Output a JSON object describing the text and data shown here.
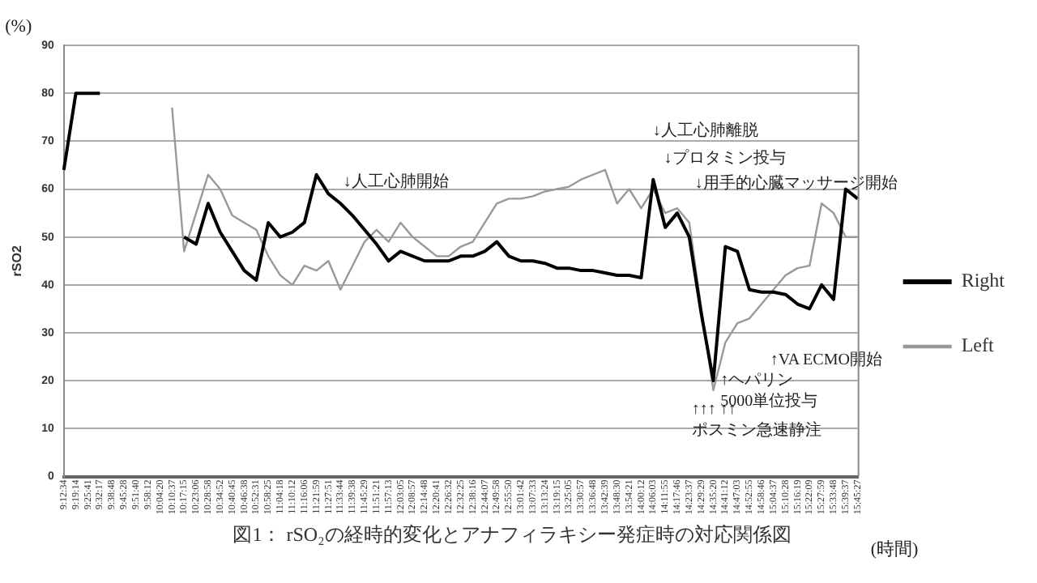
{
  "chart_data": {
    "type": "line",
    "title": "図1： rSO₂の経時的変化とアナフィラキシー発症時の対応関係図",
    "xlabel": "(時間)",
    "ylabel": "rSO2",
    "categories": [
      "9:12:34",
      "9:19:14",
      "9:25:41",
      "9:32:17",
      "9:38:48",
      "9:45:28",
      "9:51:40",
      "9:58:12",
      "10:04:20",
      "10:10:37",
      "10:17:15",
      "10:23:06",
      "10:28:58",
      "10:34:52",
      "10:40:45",
      "10:46:38",
      "10:52:31",
      "10:58:25",
      "11:04:18",
      "11:10:12",
      "11:16:06",
      "11:21:59",
      "11:27:51",
      "11:33:44",
      "11:39:38",
      "11:45:29",
      "11:51:21",
      "11:57:13",
      "12:03:05",
      "12:08:57",
      "12:14:48",
      "12:20:41",
      "12:26:32",
      "12:32:25",
      "12:38:16",
      "12:44:07",
      "12:49:58",
      "12:55:50",
      "13:01:42",
      "13:07:33",
      "13:13:24",
      "13:19:15",
      "13:25:05",
      "13:30:57",
      "13:36:48",
      "13:42:39",
      "13:48:30",
      "13:54:21",
      "14:00:12",
      "14:06:03",
      "14:11:55",
      "14:17:46",
      "14:23:37",
      "14:29:29",
      "14:35:20",
      "14:41:12",
      "14:47:03",
      "14:52:55",
      "14:58:46",
      "15:04:37",
      "15:10:28",
      "15:16:19",
      "15:22:09",
      "15:27:59",
      "15:33:48",
      "15:39:37",
      "15:45:27"
    ],
    "series": [
      {
        "name": "Right",
        "color": "#000000",
        "values": [
          64,
          80,
          80,
          80,
          null,
          null,
          null,
          null,
          null,
          null,
          50,
          48.5,
          57,
          51,
          47,
          43,
          41,
          53,
          50,
          51,
          53,
          63,
          59,
          57,
          54.5,
          51.5,
          48.5,
          45,
          47,
          46,
          45,
          45,
          45,
          46,
          46,
          47,
          49,
          46,
          45,
          45,
          44.5,
          43.5,
          43.5,
          43,
          43,
          42.5,
          42,
          42,
          41.5,
          62,
          52,
          55,
          50,
          34,
          20,
          48,
          47,
          39,
          38.5,
          38.5,
          38,
          36,
          35,
          40,
          37,
          60,
          58
        ]
      },
      {
        "name": "Left",
        "color": "#999999",
        "values": [
          null,
          null,
          null,
          null,
          null,
          null,
          null,
          null,
          null,
          77,
          47,
          55,
          63,
          60,
          54.5,
          53,
          51.5,
          46,
          42,
          40,
          44,
          43,
          45,
          39,
          44,
          49,
          51.5,
          49,
          53,
          50,
          48,
          46,
          46,
          48,
          49,
          53,
          57,
          58,
          58,
          58.5,
          59.5,
          60,
          60.5,
          62,
          63,
          64,
          57,
          60,
          56,
          60,
          55,
          56,
          53,
          35,
          18,
          28,
          32,
          33,
          36,
          39,
          42,
          43.5,
          44,
          57,
          55,
          50,
          50
        ]
      }
    ],
    "ylim": [
      0,
      90
    ],
    "yticks": [
      0,
      10,
      20,
      30,
      40,
      50,
      60,
      70,
      80,
      90
    ],
    "grid": "y",
    "legend": "right",
    "annotations": [
      "(%)",
      "↓人工心肺開始",
      "↓人工心肺離脱",
      "↓プロタミン投与",
      "↓用手的心臓マッサージ開始",
      "↑VA ECMO開始",
      "↑ヘパリン\n5000単位投与",
      "↑↑↑ ↑↑\nポスミン急速静注"
    ]
  }
}
